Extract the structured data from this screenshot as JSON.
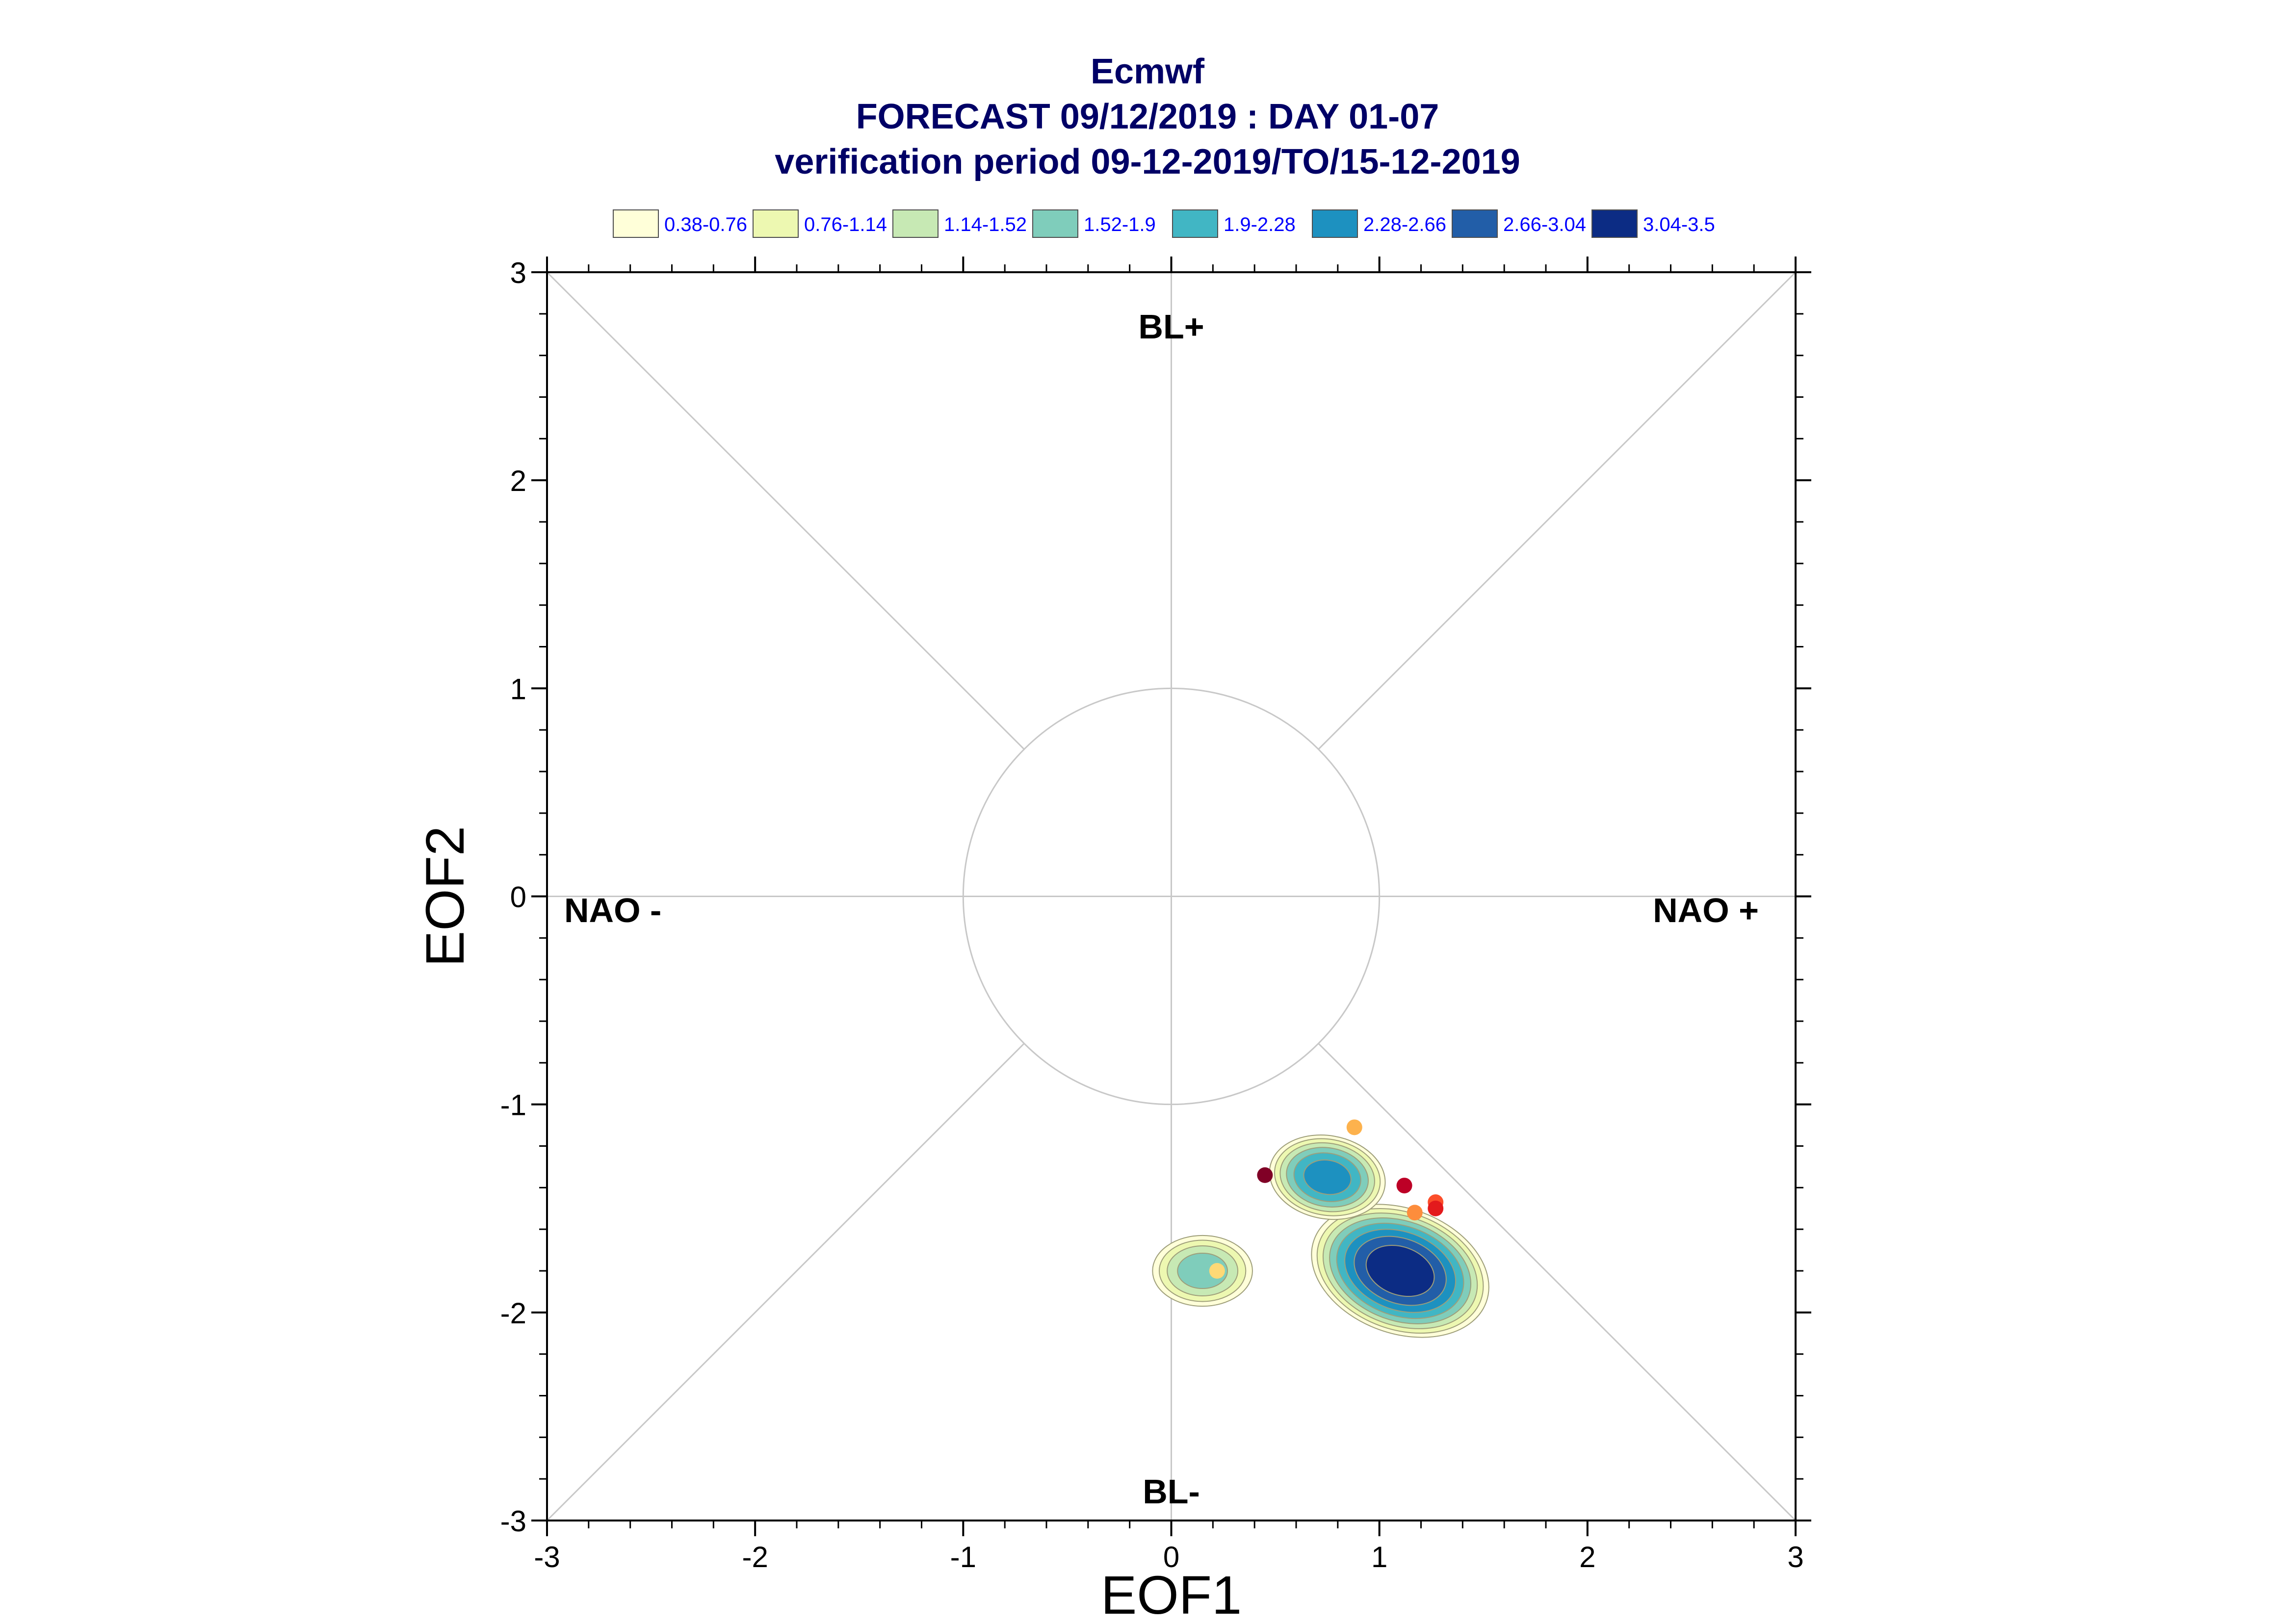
{
  "chart_data": {
    "type": "scatter",
    "title_lines": [
      "Ecmwf",
      "FORECAST 09/12/2019 : DAY 01-07",
      "verification period 09-12-2019/TO/15-12-2019"
    ],
    "xlabel": "EOF1",
    "ylabel": "EOF2",
    "xlim": [
      -3,
      3
    ],
    "ylim": [
      -3,
      3
    ],
    "xticks": [
      "-3",
      "-2",
      "-1",
      "0",
      "1",
      "2",
      "3"
    ],
    "yticks": [
      "-3",
      "-2",
      "-1",
      "0",
      "1",
      "2",
      "3"
    ],
    "grid": false,
    "reference_circle_radius": 1,
    "regime_labels": {
      "top": "BL+",
      "bottom": "BL-",
      "left": "NAO -",
      "right": "NAO +"
    },
    "legend": {
      "placement": "top",
      "entries": [
        {
          "label": "0.38-0.76",
          "color": "#ffffd9"
        },
        {
          "label": "0.76-1.14",
          "color": "#edf8b1"
        },
        {
          "label": "1.14-1.52",
          "color": "#c7e9b4"
        },
        {
          "label": "1.52-1.9",
          "color": "#7fcdbb"
        },
        {
          "label": "1.9-2.28",
          "color": "#41b6c4"
        },
        {
          "label": "2.28-2.66",
          "color": "#1d91c0"
        },
        {
          "label": "2.66-3.04",
          "color": "#225ea8"
        },
        {
          "label": "3.04-3.5",
          "color": "#0c2c84"
        }
      ]
    },
    "density_centers": [
      {
        "x": 1.1,
        "y": -1.8,
        "peak": 3.5
      },
      {
        "x": 0.75,
        "y": -1.35,
        "peak": 2.66
      },
      {
        "x": 0.15,
        "y": -1.8,
        "peak": 1.9
      }
    ],
    "points": [
      {
        "x": 0.88,
        "y": -1.11,
        "color": "#fdb24d"
      },
      {
        "x": 0.45,
        "y": -1.34,
        "color": "#800026"
      },
      {
        "x": 1.12,
        "y": -1.39,
        "color": "#bd0026"
      },
      {
        "x": 1.27,
        "y": -1.47,
        "color": "#fc4e2a"
      },
      {
        "x": 1.27,
        "y": -1.5,
        "color": "#e31a1c"
      },
      {
        "x": 1.17,
        "y": -1.52,
        "color": "#fd8d3c"
      },
      {
        "x": 0.22,
        "y": -1.8,
        "color": "#fed976"
      }
    ],
    "colors": {
      "title": "#000066",
      "legend_text": "#0000ff",
      "axis": "#000000",
      "guide_lines": "#c8c8c8"
    }
  }
}
